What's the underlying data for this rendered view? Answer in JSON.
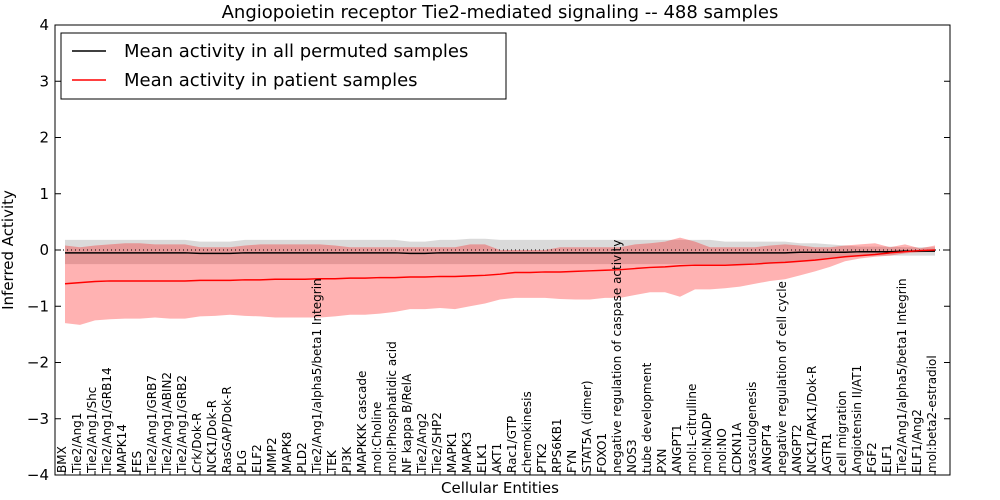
{
  "chart_data": {
    "type": "line",
    "title": "Angiopoietin receptor Tie2-mediated signaling -- 488 samples",
    "xlabel": "Cellular Entities",
    "ylabel": "Inferred Activity",
    "ylim": [
      -4,
      4
    ],
    "yticks": [
      -4,
      -3,
      -2,
      -1,
      0,
      1,
      2,
      3,
      4
    ],
    "legend": {
      "placement": "top-left",
      "entries": [
        {
          "label": "Mean activity in all permuted samples",
          "color": "#000000"
        },
        {
          "label": "Mean activity in patient samples",
          "color": "#ff0000"
        }
      ]
    },
    "categories": [
      "BMX",
      "Tie2/Ang1",
      "Tie2/Ang1/Shc",
      "Tie2/Ang1/GRB14",
      "MAPK14",
      "FES",
      "Tie2/Ang1/GRB7",
      "Tie2/Ang1/ABIN2",
      "Tie2/Ang1/GRB2",
      "Crk/Dok-R",
      "NCK1/Dok-R",
      "RasGAP/Dok-R",
      "PLG",
      "ELF2",
      "MMP2",
      "MAPK8",
      "PLD2",
      "Tie2/Ang1/alpha5/beta1 Integrin",
      "TEK",
      "PI3K",
      "MAPKKK cascade",
      "mol:Choline",
      "mol:Phosphatidic acid",
      "NF kappa B/RelA",
      "Tie2/Ang2",
      "Tie2/SHP2",
      "MAPK1",
      "MAPK3",
      "ELK1",
      "AKT1",
      "Rac1/GTP",
      "chemokinesis",
      "PTK2",
      "RPS6KB1",
      "FYN",
      "STAT5A (dimer)",
      "FOXO1",
      "negative regulation of caspase activity",
      "NOS3",
      "tube development",
      "PXN",
      "ANGPT1",
      "mol:L-citrulline",
      "mol:NADP",
      "mol:NO",
      "CDKN1A",
      "vasculogenesis",
      "ANGPT4",
      "negative regulation of cell cycle",
      "ANGPT2",
      "NCK1/PAK1/Dok-R",
      "AGTR1",
      "cell migration",
      "Angiotensin II/AT1",
      "FGF2",
      "ELF1",
      "Tie2/Ang1/alpha5/beta1 Integrin",
      "ELF1/Ang2",
      "mol:beta2-estradiol"
    ],
    "series": [
      {
        "name": "Mean activity in all permuted samples",
        "color": "#000000",
        "values": [
          -0.05,
          -0.05,
          -0.05,
          -0.05,
          -0.05,
          -0.05,
          -0.05,
          -0.05,
          -0.05,
          -0.06,
          -0.06,
          -0.06,
          -0.05,
          -0.05,
          -0.05,
          -0.05,
          -0.05,
          -0.05,
          -0.05,
          -0.05,
          -0.05,
          -0.05,
          -0.05,
          -0.06,
          -0.06,
          -0.05,
          -0.05,
          -0.05,
          -0.05,
          -0.05,
          -0.05,
          -0.05,
          -0.05,
          -0.05,
          -0.05,
          -0.05,
          -0.05,
          -0.05,
          -0.05,
          -0.05,
          -0.05,
          -0.05,
          -0.05,
          -0.05,
          -0.05,
          -0.05,
          -0.05,
          -0.05,
          -0.05,
          -0.04,
          -0.04,
          -0.04,
          -0.04,
          -0.03,
          -0.03,
          -0.03,
          -0.02,
          -0.02,
          -0.02
        ],
        "band_low": [
          -0.25,
          -0.25,
          -0.25,
          -0.25,
          -0.25,
          -0.25,
          -0.25,
          -0.25,
          -0.25,
          -0.25,
          -0.25,
          -0.25,
          -0.25,
          -0.25,
          -0.25,
          -0.25,
          -0.25,
          -0.25,
          -0.25,
          -0.25,
          -0.25,
          -0.25,
          -0.25,
          -0.25,
          -0.25,
          -0.25,
          -0.25,
          -0.25,
          -0.25,
          -0.25,
          -0.25,
          -0.25,
          -0.25,
          -0.25,
          -0.25,
          -0.25,
          -0.25,
          -0.25,
          -0.25,
          -0.25,
          -0.25,
          -0.25,
          -0.25,
          -0.25,
          -0.25,
          -0.25,
          -0.25,
          -0.25,
          -0.22,
          -0.2,
          -0.18,
          -0.15,
          -0.12,
          -0.1,
          -0.1,
          -0.1,
          -0.1,
          -0.1,
          -0.1
        ],
        "band_high": [
          0.18,
          0.18,
          0.18,
          0.18,
          0.18,
          0.18,
          0.18,
          0.18,
          0.18,
          0.15,
          0.15,
          0.15,
          0.18,
          0.18,
          0.18,
          0.18,
          0.18,
          0.18,
          0.18,
          0.18,
          0.18,
          0.18,
          0.18,
          0.15,
          0.15,
          0.18,
          0.18,
          0.2,
          0.2,
          0.18,
          0.18,
          0.18,
          0.18,
          0.18,
          0.18,
          0.18,
          0.18,
          0.18,
          0.18,
          0.18,
          0.18,
          0.18,
          0.18,
          0.18,
          0.15,
          0.15,
          0.15,
          0.15,
          0.15,
          0.12,
          0.12,
          0.1,
          0.08,
          0.06,
          0.06,
          0.06,
          0.05,
          0.05,
          0.05
        ]
      },
      {
        "name": "Mean activity in patient samples",
        "color": "#ff0000",
        "values": [
          -0.6,
          -0.58,
          -0.56,
          -0.55,
          -0.55,
          -0.55,
          -0.55,
          -0.55,
          -0.55,
          -0.54,
          -0.54,
          -0.54,
          -0.53,
          -0.53,
          -0.52,
          -0.52,
          -0.52,
          -0.51,
          -0.51,
          -0.5,
          -0.5,
          -0.49,
          -0.49,
          -0.48,
          -0.48,
          -0.47,
          -0.47,
          -0.46,
          -0.45,
          -0.43,
          -0.4,
          -0.4,
          -0.39,
          -0.39,
          -0.38,
          -0.37,
          -0.36,
          -0.35,
          -0.33,
          -0.31,
          -0.3,
          -0.28,
          -0.27,
          -0.27,
          -0.27,
          -0.26,
          -0.25,
          -0.23,
          -0.22,
          -0.2,
          -0.18,
          -0.15,
          -0.12,
          -0.1,
          -0.08,
          -0.05,
          -0.03,
          -0.01,
          0.0
        ],
        "band_low": [
          -1.3,
          -1.33,
          -1.25,
          -1.23,
          -1.22,
          -1.22,
          -1.2,
          -1.22,
          -1.22,
          -1.18,
          -1.17,
          -1.15,
          -1.17,
          -1.18,
          -1.2,
          -1.2,
          -1.2,
          -1.2,
          -1.18,
          -1.15,
          -1.15,
          -1.13,
          -1.1,
          -1.05,
          -1.05,
          -1.03,
          -1.05,
          -1.0,
          -0.95,
          -0.88,
          -0.85,
          -0.85,
          -0.85,
          -0.87,
          -0.88,
          -0.88,
          -0.85,
          -0.85,
          -0.8,
          -0.75,
          -0.75,
          -0.83,
          -0.7,
          -0.7,
          -0.68,
          -0.65,
          -0.6,
          -0.55,
          -0.52,
          -0.45,
          -0.38,
          -0.3,
          -0.2,
          -0.15,
          -0.12,
          -0.1,
          -0.06,
          -0.04,
          -0.03
        ],
        "band_high": [
          0.08,
          0.05,
          0.08,
          0.1,
          0.12,
          0.12,
          0.1,
          0.1,
          0.1,
          0.05,
          0.05,
          0.05,
          0.08,
          0.1,
          0.1,
          0.1,
          0.1,
          0.1,
          0.08,
          0.05,
          0.05,
          0.05,
          0.05,
          0.05,
          0.05,
          0.05,
          0.05,
          0.1,
          0.1,
          0.0,
          0.0,
          0.0,
          0.0,
          0.05,
          0.05,
          0.05,
          0.05,
          0.05,
          0.1,
          0.12,
          0.15,
          0.22,
          0.15,
          0.05,
          0.05,
          0.05,
          0.05,
          0.08,
          0.1,
          0.08,
          0.05,
          0.05,
          0.08,
          0.1,
          0.12,
          0.05,
          0.1,
          0.03,
          0.08
        ]
      }
    ]
  }
}
